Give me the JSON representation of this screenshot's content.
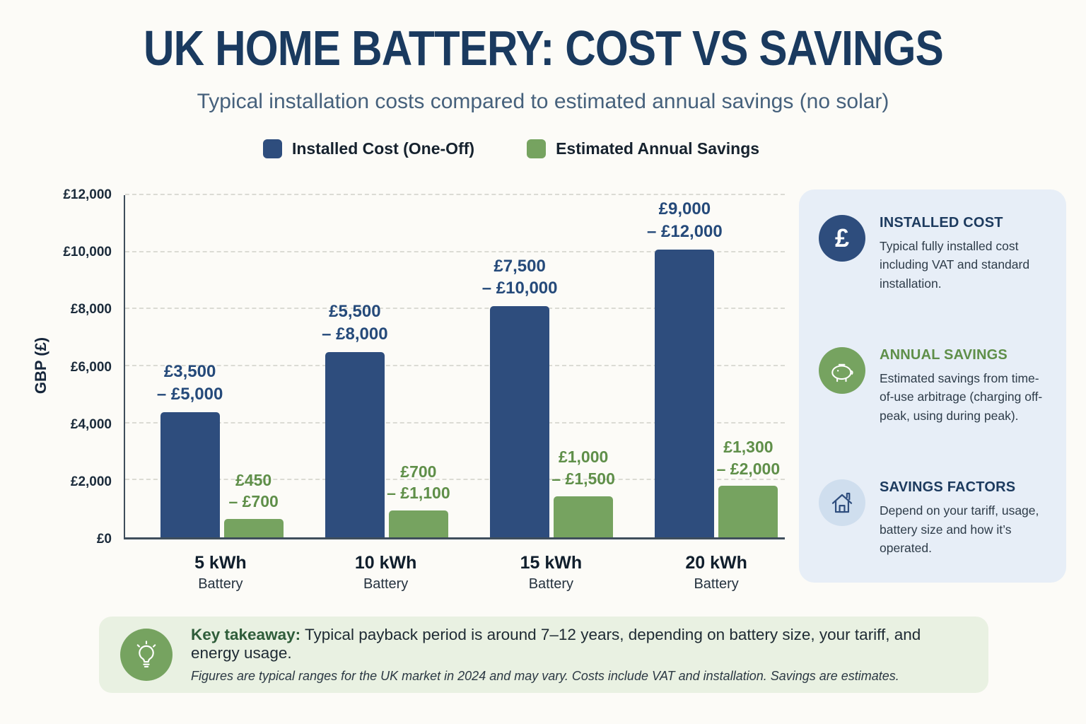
{
  "page": {
    "title": "UK HOME BATTERY: COST VS SAVINGS",
    "subtitle": "Typical installation costs compared to estimated annual savings (no solar)"
  },
  "colors": {
    "navy": "#2e4d7d",
    "green": "#76a360",
    "title_navy": "#1a3a5f",
    "panel_bg": "#e7eef7",
    "takeaway_bg": "#e9f1e2",
    "icon_circle_blue": "#cfdeee"
  },
  "legend": {
    "items": [
      {
        "label": "Installed Cost (One-Off)",
        "color": "#2e4d7d"
      },
      {
        "label": "Estimated Annual Savings",
        "color": "#76a360"
      }
    ]
  },
  "chart_data": {
    "type": "bar",
    "title": "UK Home Battery: Cost vs Savings",
    "subtitle": "Typical installation costs compared to estimated annual savings (no solar)",
    "xlabel": "",
    "ylabel": "GBP (£)",
    "ylim": [
      0,
      12000
    ],
    "grid": true,
    "legend_position": "top",
    "yticks": [
      {
        "value": 0,
        "label": "£0"
      },
      {
        "value": 2000,
        "label": "£2,000"
      },
      {
        "value": 4000,
        "label": "£4,000"
      },
      {
        "value": 6000,
        "label": "£6,000"
      },
      {
        "value": 8000,
        "label": "£8,000"
      },
      {
        "value": 10000,
        "label": "£10,000"
      },
      {
        "value": 12000,
        "label": "£12,000"
      }
    ],
    "categories": [
      {
        "id": "5kwh",
        "line1": "5 kWh",
        "line2": "Battery"
      },
      {
        "id": "10kwh",
        "line1": "10 kWh",
        "line2": "Battery"
      },
      {
        "id": "15kwh",
        "line1": "15 kWh",
        "line2": "Battery"
      },
      {
        "id": "20kwh",
        "line1": "20 kWh",
        "line2": "Battery"
      }
    ],
    "series": [
      {
        "name": "Installed Cost (One-Off)",
        "color": "#2e4d7d",
        "values": [
          4400,
          6500,
          8100,
          10100
        ],
        "range_labels": [
          [
            "£3,500",
            "– £5,000"
          ],
          [
            "£5,500",
            "– £8,000"
          ],
          [
            "£7,500",
            "– £10,000"
          ],
          [
            "£9,000",
            "– £12,000"
          ]
        ]
      },
      {
        "name": "Estimated Annual Savings",
        "color": "#76a360",
        "values": [
          650,
          950,
          1450,
          1800
        ],
        "range_labels": [
          [
            "£450",
            "– £700"
          ],
          [
            "£700",
            "– £1,100"
          ],
          [
            "£1,000",
            "– £1,500"
          ],
          [
            "£1,300",
            "– £2,000"
          ]
        ]
      }
    ]
  },
  "panel": {
    "items": [
      {
        "icon": "pound-icon",
        "title": "INSTALLED COST",
        "title_color": "#1c3a5e",
        "body": "Typical fully installed cost including VAT and standard installation."
      },
      {
        "icon": "piggy-bank-icon",
        "title": "ANNUAL SAVINGS",
        "title_color": "#5f8f49",
        "body": "Estimated savings from time-of-use arbitrage (charging off-peak, using during peak)."
      },
      {
        "icon": "house-icon",
        "title": "SAVINGS FACTORS",
        "title_color": "#1c3a5e",
        "body": "Depend on your tariff, usage, battery size and how it’s operated."
      }
    ]
  },
  "takeaway": {
    "heading": "Key takeaway:",
    "text": " Typical payback period is around 7–12 years, depending on battery size, your tariff, and energy usage.",
    "footnote": "Figures are typical ranges for the UK market in 2024 and may vary. Costs include VAT and installation. Savings are estimates.",
    "pound_symbol": "£"
  }
}
